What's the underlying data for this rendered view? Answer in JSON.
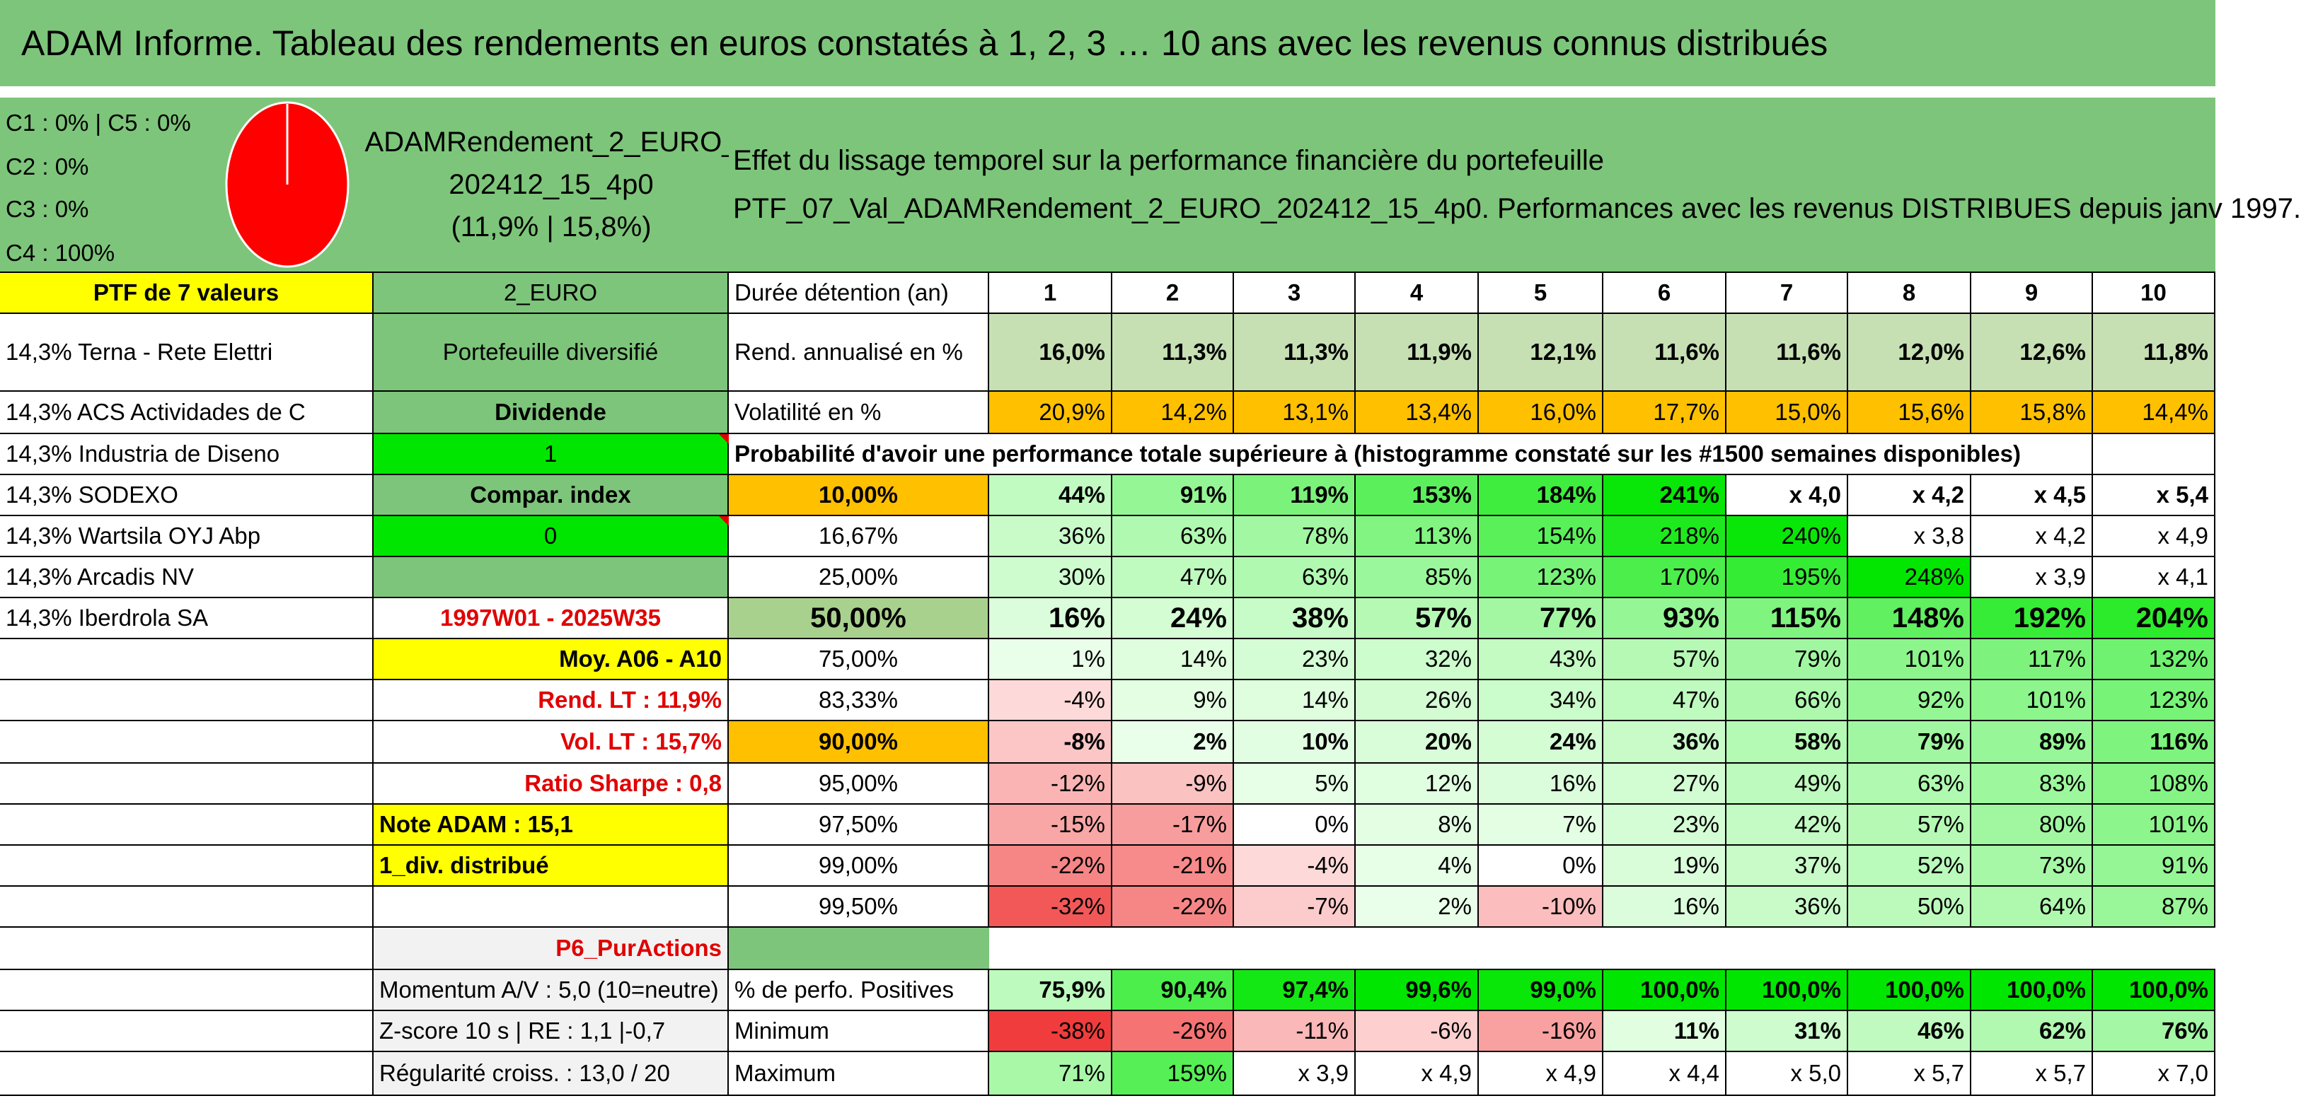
{
  "title": "ADAM Informe. Tableau des rendements en euros constatés à 1, 2, 3 … 10 ans avec les revenus connus distribués",
  "classes": [
    "C1 : 0% | C5 : 0%",
    "C2 : 0%",
    "C3 : 0%",
    "C4 : 100%"
  ],
  "pie_color": "#ff0000",
  "fund": {
    "name_line1": "ADAMRendement_2_EURO_",
    "name_line2": "202412_15_4p0",
    "name_line3": "(11,9% | 15,8%)",
    "code": "2_EURO",
    "category": "Portefeuille diversifié",
    "type": "Dividende",
    "one_value": "1",
    "compar_label": "Compar. index",
    "zero_value": "0",
    "period": "1997W01 - 2025W35",
    "moy": "Moy. A06 - A10",
    "rend_lt": "Rend. LT : 11,9%",
    "vol_lt": "Vol. LT : 15,7%",
    "sharpe": "Ratio Sharpe : 0,8",
    "note": "Note ADAM : 15,1",
    "div": "1_div. distribué",
    "pur_actions": "P6_PurActions",
    "momentum": "Momentum A/V : 5,0 (10=neutre)",
    "zscore": "Z-score 10 s | RE : 1,1 |-0,7",
    "regularite": "Régularité croiss. : 13,0 / 20"
  },
  "effect_text_line1": "Effet du lissage temporel sur la performance financière du portefeuille",
  "effect_text_line2": "PTF_07_Val_ADAMRendement_2_EURO_202412_15_4p0. Performances avec les revenus DISTRIBUES depuis janv 1997.",
  "portfolio_header": "PTF de 7 valeurs",
  "holdings": [
    "14,3% Terna - Rete Elettri",
    "14,3% ACS Actividades de C",
    "14,3% Industria de Diseno",
    "14,3% SODEXO",
    "14,3% Wartsila OYJ Abp",
    "14,3% Arcadis NV",
    "14,3% Iberdrola SA"
  ],
  "duration_label": "Durée détention (an)",
  "years": [
    "1",
    "2",
    "3",
    "4",
    "5",
    "6",
    "7",
    "8",
    "9",
    "10"
  ],
  "rend_label": "Rend. annualisé en %",
  "rend": [
    "16,0%",
    "11,3%",
    "11,3%",
    "11,9%",
    "12,1%",
    "11,6%",
    "11,6%",
    "12,0%",
    "12,6%",
    "11,8%"
  ],
  "vol_label": "Volatilité en %",
  "vol": [
    "20,9%",
    "14,2%",
    "13,1%",
    "13,4%",
    "16,0%",
    "17,7%",
    "15,0%",
    "15,6%",
    "15,8%",
    "14,4%"
  ],
  "prob_text": "Probabilité d'avoir une performance totale supérieure à (histogramme constaté sur les #1500 semaines disponibles)",
  "prob_rows": [
    {
      "p": "10,00%",
      "v": [
        "44%",
        "91%",
        "119%",
        "153%",
        "184%",
        "241%",
        "x 4,0",
        "x 4,2",
        "x 4,5",
        "x 5,4"
      ]
    },
    {
      "p": "16,67%",
      "v": [
        "36%",
        "63%",
        "78%",
        "113%",
        "154%",
        "218%",
        "240%",
        "x 3,8",
        "x 4,2",
        "x 4,9"
      ]
    },
    {
      "p": "25,00%",
      "v": [
        "30%",
        "47%",
        "63%",
        "85%",
        "123%",
        "170%",
        "195%",
        "248%",
        "x 3,9",
        "x 4,1"
      ]
    },
    {
      "p": "50,00%",
      "v": [
        "16%",
        "24%",
        "38%",
        "57%",
        "77%",
        "93%",
        "115%",
        "148%",
        "192%",
        "204%"
      ]
    },
    {
      "p": "75,00%",
      "v": [
        "1%",
        "14%",
        "23%",
        "32%",
        "43%",
        "57%",
        "79%",
        "101%",
        "117%",
        "132%"
      ]
    },
    {
      "p": "83,33%",
      "v": [
        "-4%",
        "9%",
        "14%",
        "26%",
        "34%",
        "47%",
        "66%",
        "92%",
        "101%",
        "123%"
      ]
    },
    {
      "p": "90,00%",
      "v": [
        "-8%",
        "2%",
        "10%",
        "20%",
        "24%",
        "36%",
        "58%",
        "79%",
        "89%",
        "116%"
      ]
    },
    {
      "p": "95,00%",
      "v": [
        "-12%",
        "-9%",
        "5%",
        "12%",
        "16%",
        "27%",
        "49%",
        "63%",
        "83%",
        "108%"
      ]
    },
    {
      "p": "97,50%",
      "v": [
        "-15%",
        "-17%",
        "0%",
        "8%",
        "7%",
        "23%",
        "42%",
        "57%",
        "80%",
        "101%"
      ]
    },
    {
      "p": "99,00%",
      "v": [
        "-22%",
        "-21%",
        "-4%",
        "4%",
        "0%",
        "19%",
        "37%",
        "52%",
        "73%",
        "91%"
      ]
    },
    {
      "p": "99,50%",
      "v": [
        "-32%",
        "-22%",
        "-7%",
        "2%",
        "-10%",
        "16%",
        "36%",
        "50%",
        "64%",
        "87%"
      ]
    }
  ],
  "pos_label": "% de perfo. Positives",
  "pos": [
    "75,9%",
    "90,4%",
    "97,4%",
    "99,6%",
    "99,0%",
    "100,0%",
    "100,0%",
    "100,0%",
    "100,0%",
    "100,0%"
  ],
  "min_label": "Minimum",
  "min": [
    "-38%",
    "-26%",
    "-11%",
    "-6%",
    "-16%",
    "11%",
    "31%",
    "46%",
    "62%",
    "76%"
  ],
  "max_label": "Maximum",
  "max": [
    "71%",
    "159%",
    "x 3,9",
    "x 4,9",
    "x 4,9",
    "x 4,4",
    "x 5,0",
    "x 5,7",
    "x 5,7",
    "x 7,0"
  ],
  "colors": {
    "header_green": "#7dc57a",
    "bright_green": "#00e600",
    "yellow": "#ffff00",
    "orange": "#ffc000",
    "light_gray": "#f2f2f2",
    "red_text": "#e00000"
  }
}
